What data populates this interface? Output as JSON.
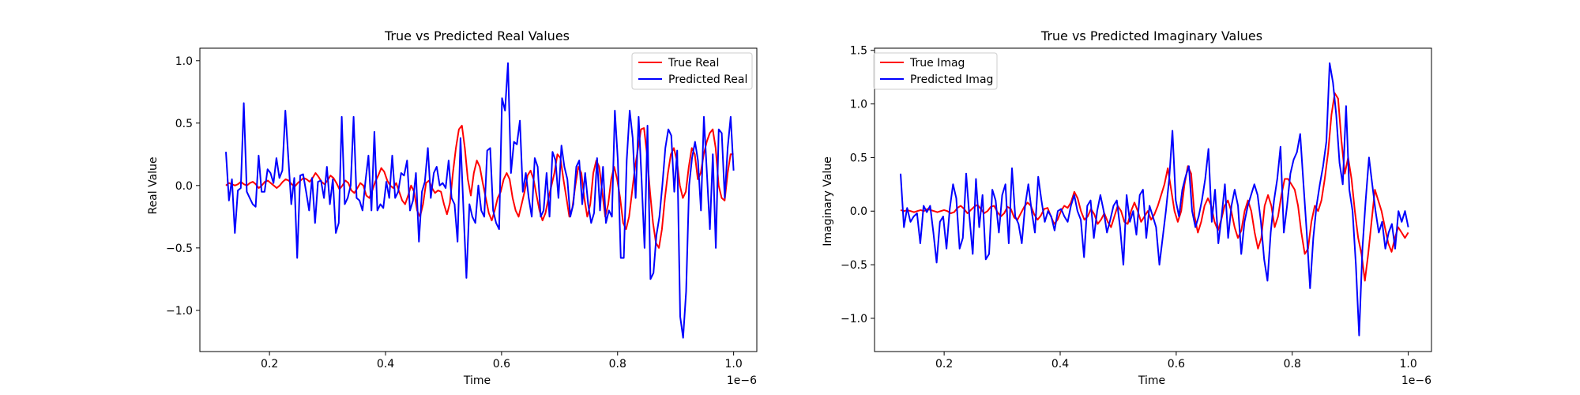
{
  "chart_data": [
    {
      "type": "line",
      "title": "True vs Predicted Real Values",
      "xlabel": "Time",
      "ylabel": "Real Value",
      "x_offset_label": "1e−6",
      "xlim": [
        0.08,
        1.04
      ],
      "ylim": [
        -1.33,
        1.1
      ],
      "xticks": [
        "0.2",
        "0.4",
        "0.6",
        "0.8",
        "1.0"
      ],
      "xtick_values": [
        0.2,
        0.4,
        0.6,
        0.8,
        1.0
      ],
      "yticks": [
        "−1.0",
        "−0.5",
        "0.0",
        "0.5",
        "1.0"
      ],
      "ytick_values": [
        -1.0,
        -0.5,
        0.0,
        0.5,
        1.0
      ],
      "legend_position": "top-right",
      "x_start": 0.125,
      "x_end": 1.0,
      "series": [
        {
          "name": "True Real",
          "color": "#ff0000",
          "values": [
            0.0,
            0.02,
            0.01,
            0.0,
            0.01,
            0.03,
            0.01,
            0.0,
            0.02,
            0.03,
            0.01,
            -0.02,
            0.0,
            0.03,
            0.04,
            0.02,
            0.0,
            -0.02,
            0.0,
            0.03,
            0.05,
            0.04,
            0.01,
            -0.01,
            0.02,
            0.04,
            0.06,
            0.05,
            0.03,
            0.06,
            0.1,
            0.07,
            0.03,
            0.01,
            0.04,
            0.08,
            0.06,
            0.02,
            -0.03,
            0.0,
            0.04,
            0.02,
            -0.04,
            -0.06,
            -0.02,
            0.02,
            0.0,
            -0.08,
            -0.1,
            -0.04,
            0.03,
            0.08,
            0.14,
            0.11,
            0.04,
            0.0,
            -0.02,
            0.02,
            -0.05,
            -0.12,
            -0.15,
            -0.08,
            0.0,
            -0.05,
            -0.2,
            -0.25,
            -0.15,
            0.02,
            0.04,
            -0.02,
            -0.06,
            -0.04,
            -0.05,
            -0.15,
            -0.23,
            -0.14,
            0.1,
            0.3,
            0.45,
            0.48,
            0.3,
            0.05,
            -0.08,
            0.1,
            0.2,
            0.15,
            0.02,
            -0.1,
            -0.22,
            -0.28,
            -0.2,
            -0.1,
            -0.05,
            0.05,
            0.1,
            0.05,
            -0.1,
            -0.2,
            -0.25,
            -0.15,
            -0.05,
            0.08,
            0.12,
            0.05,
            -0.08,
            -0.2,
            -0.28,
            -0.22,
            -0.1,
            0.0,
            0.1,
            0.25,
            0.22,
            0.05,
            -0.1,
            -0.25,
            -0.18,
            0.0,
            0.15,
            0.1,
            -0.1,
            -0.25,
            -0.15,
            0.1,
            0.2,
            0.15,
            -0.05,
            -0.25,
            -0.15,
            0.05,
            0.15,
            0.05,
            -0.1,
            -0.3,
            -0.35,
            -0.25,
            -0.05,
            0.15,
            0.3,
            0.45,
            0.46,
            0.25,
            -0.05,
            -0.3,
            -0.46,
            -0.5,
            -0.35,
            -0.1,
            0.1,
            0.25,
            0.3,
            0.2,
            0.0,
            -0.1,
            -0.05,
            0.15,
            0.3,
            0.25,
            0.05,
            0.1,
            0.25,
            0.35,
            0.42,
            0.45,
            0.3,
            0.0,
            -0.1,
            -0.12,
            0.1,
            0.25,
            0.25
          ]
        },
        {
          "name": "Predicted Real",
          "color": "#0000ff",
          "values": [
            0.27,
            -0.12,
            0.05,
            -0.38,
            -0.04,
            -0.02,
            0.66,
            -0.05,
            -0.1,
            -0.15,
            -0.17,
            0.24,
            -0.05,
            -0.05,
            0.13,
            0.1,
            0.02,
            0.22,
            0.06,
            0.12,
            0.6,
            0.22,
            -0.15,
            0.06,
            -0.58,
            0.08,
            0.09,
            -0.05,
            -0.2,
            0.06,
            -0.3,
            0.03,
            0.04,
            -0.1,
            0.15,
            -0.15,
            0.05,
            -0.38,
            -0.3,
            0.55,
            -0.15,
            -0.1,
            0.0,
            0.55,
            -0.1,
            -0.12,
            -0.2,
            0.04,
            0.24,
            -0.2,
            0.43,
            -0.2,
            -0.15,
            -0.18,
            0.03,
            -0.1,
            0.24,
            -0.1,
            -0.05,
            0.1,
            0.08,
            0.2,
            -0.2,
            -0.12,
            0.1,
            -0.45,
            -0.05,
            0.03,
            0.3,
            -0.1,
            0.1,
            0.15,
            0.0,
            0.02,
            -0.02,
            0.2,
            -0.1,
            -0.15,
            -0.45,
            0.38,
            -0.2,
            -0.74,
            -0.15,
            -0.25,
            -0.3,
            0.0,
            -0.2,
            -0.25,
            0.28,
            0.3,
            -0.2,
            -0.3,
            -0.35,
            0.7,
            0.6,
            0.98,
            0.1,
            0.35,
            0.33,
            0.52,
            -0.05,
            0.1,
            -0.1,
            -0.25,
            0.22,
            0.15,
            -0.25,
            -0.2,
            0.1,
            -0.25,
            0.27,
            0.2,
            -0.1,
            0.32,
            0.15,
            0.05,
            -0.25,
            -0.15,
            0.15,
            0.2,
            -0.15,
            0.1,
            -0.15,
            -0.3,
            -0.22,
            0.22,
            -0.2,
            0.15,
            -0.3,
            -0.2,
            -0.25,
            0.6,
            0.2,
            -0.58,
            -0.58,
            0.2,
            0.6,
            0.38,
            -0.1,
            0.55,
            0.05,
            -0.5,
            0.48,
            -0.75,
            -0.7,
            -0.4,
            -0.25,
            0.0,
            0.3,
            0.45,
            0.4,
            -0.05,
            0.28,
            -1.05,
            -1.22,
            -0.85,
            0.0,
            0.22,
            0.35,
            0.2,
            -0.2,
            0.55,
            0.1,
            -0.35,
            0.25,
            -0.5,
            0.45,
            0.42,
            -0.1,
            0.3,
            0.55,
            0.12
          ]
        }
      ]
    },
    {
      "type": "line",
      "title": "True vs Predicted Imaginary Values",
      "xlabel": "Time",
      "ylabel": "Imaginary Value",
      "x_offset_label": "1e−6",
      "xlim": [
        0.08,
        1.04
      ],
      "ylim": [
        -1.31,
        1.52
      ],
      "xticks": [
        "0.2",
        "0.4",
        "0.6",
        "0.8",
        "1.0"
      ],
      "xtick_values": [
        0.2,
        0.4,
        0.6,
        0.8,
        1.0
      ],
      "yticks": [
        "−1.0",
        "−0.5",
        "0.0",
        "0.5",
        "1.0",
        "1.5"
      ],
      "ytick_values": [
        -1.0,
        -0.5,
        0.0,
        0.5,
        1.0,
        1.5
      ],
      "legend_position": "top-left",
      "x_start": 0.125,
      "x_end": 1.0,
      "series": [
        {
          "name": "True Imag",
          "color": "#ff0000",
          "values": [
            0.01,
            0.0,
            0.01,
            0.0,
            -0.01,
            0.0,
            0.01,
            0.0,
            0.02,
            0.01,
            0.0,
            -0.01,
            0.0,
            0.01,
            0.0,
            -0.02,
            -0.01,
            0.03,
            0.05,
            0.02,
            -0.02,
            0.01,
            0.04,
            0.06,
            0.02,
            -0.02,
            0.0,
            0.04,
            0.05,
            -0.01,
            -0.05,
            -0.02,
            0.04,
            0.02,
            -0.06,
            -0.08,
            -0.02,
            0.04,
            0.08,
            0.05,
            -0.03,
            -0.08,
            -0.04,
            0.02,
            0.03,
            -0.05,
            -0.12,
            -0.08,
            0.0,
            0.05,
            0.03,
            0.08,
            0.18,
            0.12,
            0.0,
            -0.08,
            -0.05,
            0.02,
            -0.03,
            -0.12,
            -0.08,
            -0.02,
            -0.1,
            -0.15,
            -0.05,
            0.05,
            0.0,
            -0.1,
            -0.12,
            0.0,
            0.08,
            0.0,
            -0.1,
            -0.05,
            0.0,
            -0.08,
            -0.03,
            0.05,
            0.15,
            0.25,
            0.4,
            0.2,
            0.0,
            -0.1,
            0.0,
            0.25,
            0.42,
            0.35,
            -0.05,
            -0.2,
            -0.1,
            0.05,
            0.12,
            0.05,
            -0.1,
            -0.18,
            -0.08,
            0.05,
            0.1,
            0.0,
            -0.15,
            -0.25,
            -0.18,
            0.0,
            0.1,
            0.0,
            -0.2,
            -0.35,
            -0.25,
            0.05,
            0.15,
            0.05,
            -0.15,
            -0.05,
            0.15,
            0.3,
            0.3,
            0.25,
            0.2,
            0.05,
            -0.2,
            -0.4,
            -0.35,
            -0.1,
            0.05,
            0.0,
            0.1,
            0.3,
            0.55,
            0.9,
            1.1,
            1.05,
            0.65,
            0.35,
            0.5,
            0.3,
            0.0,
            -0.25,
            -0.4,
            -0.65,
            -0.4,
            -0.1,
            0.2,
            0.1,
            0.0,
            -0.15,
            -0.3,
            -0.38,
            -0.25,
            -0.15,
            -0.2,
            -0.25,
            -0.2
          ]
        },
        {
          "name": "Predicted Imag",
          "color": "#0000ff",
          "values": [
            0.35,
            -0.15,
            0.03,
            -0.1,
            -0.05,
            -0.02,
            -0.3,
            0.05,
            -0.01,
            0.05,
            -0.2,
            -0.48,
            -0.1,
            -0.05,
            -0.35,
            0.02,
            0.25,
            0.12,
            -0.35,
            -0.25,
            0.35,
            -0.05,
            -0.4,
            0.3,
            -0.15,
            0.15,
            -0.45,
            -0.4,
            0.2,
            0.1,
            -0.2,
            0.15,
            0.25,
            -0.3,
            0.4,
            -0.05,
            -0.12,
            -0.3,
            0.05,
            0.25,
            0.0,
            -0.2,
            0.32,
            0.1,
            -0.1,
            0.0,
            -0.05,
            -0.18,
            0.0,
            0.02,
            -0.05,
            -0.1,
            0.05,
            0.15,
            0.0,
            -0.08,
            -0.43,
            0.05,
            0.1,
            -0.25,
            0.0,
            0.15,
            0.0,
            -0.2,
            -0.08,
            0.05,
            0.1,
            -0.15,
            -0.5,
            0.15,
            -0.1,
            0.0,
            -0.22,
            0.15,
            0.2,
            -0.25,
            0.05,
            -0.05,
            -0.15,
            -0.5,
            -0.25,
            0.0,
            0.3,
            0.75,
            0.1,
            -0.05,
            0.2,
            0.32,
            0.42,
            0.0,
            -0.15,
            -0.05,
            0.1,
            0.3,
            0.58,
            -0.1,
            0.2,
            -0.3,
            -0.05,
            0.25,
            -0.25,
            0.05,
            0.2,
            0.05,
            -0.4,
            -0.1,
            0.05,
            0.15,
            0.25,
            0.15,
            -0.1,
            -0.45,
            -0.65,
            -0.2,
            0.1,
            0.3,
            0.6,
            -0.2,
            0.05,
            0.35,
            0.48,
            0.55,
            0.72,
            0.25,
            -0.2,
            -0.72,
            -0.25,
            0.05,
            0.25,
            0.42,
            0.65,
            1.38,
            1.2,
            0.9,
            0.45,
            0.25,
            0.98,
            0.2,
            0.0,
            -0.5,
            -1.16,
            -0.35,
            0.1,
            0.5,
            0.25,
            0.0,
            -0.2,
            -0.1,
            -0.35,
            -0.2,
            -0.12,
            -0.35,
            0.0,
            -0.1,
            0.0,
            -0.15
          ]
        }
      ]
    }
  ]
}
